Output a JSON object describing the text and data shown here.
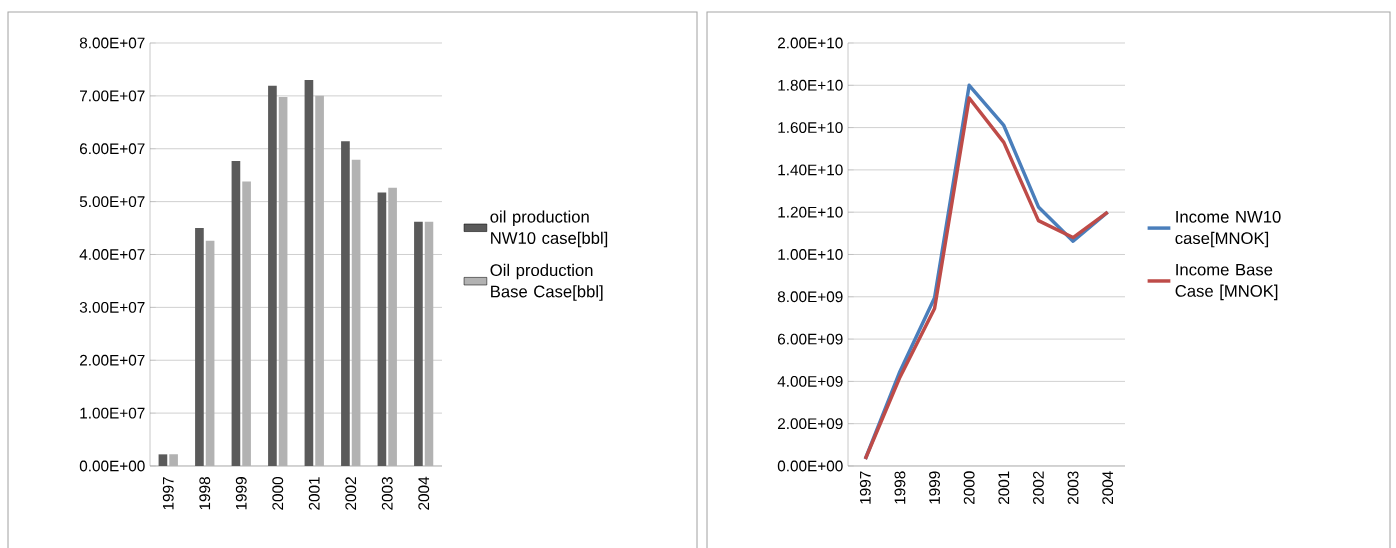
{
  "chart_data": [
    {
      "type": "bar",
      "categories": [
        "1997",
        "1998",
        "1999",
        "2000",
        "2001",
        "2002",
        "2003",
        "2004"
      ],
      "series": [
        {
          "name": "oil production NW10 case[bbl]",
          "color": "#5a5a5a",
          "values": [
            2200000,
            45000000,
            57700000,
            71900000,
            73000000,
            61400000,
            51700000,
            46200000
          ]
        },
        {
          "name": "Oil production Base Case[bbl]",
          "color": "#b2b2b2",
          "values": [
            2200000,
            42600000,
            53800000,
            69800000,
            70000000,
            57900000,
            52600000,
            46200000
          ]
        }
      ],
      "ylim": [
        0,
        80000000
      ],
      "yticks": [
        {
          "value": 0,
          "label": "0.00E+00"
        },
        {
          "value": 10000000,
          "label": "1.00E+07"
        },
        {
          "value": 20000000,
          "label": "2.00E+07"
        },
        {
          "value": 30000000,
          "label": "3.00E+07"
        },
        {
          "value": 40000000,
          "label": "4.00E+07"
        },
        {
          "value": 50000000,
          "label": "5.00E+07"
        },
        {
          "value": 60000000,
          "label": "6.00E+07"
        },
        {
          "value": 70000000,
          "label": "7.00E+07"
        },
        {
          "value": 80000000,
          "label": "8.00E+07"
        }
      ],
      "grid": "y",
      "legend": "right"
    },
    {
      "type": "line",
      "categories": [
        "1997",
        "1998",
        "1999",
        "2000",
        "2001",
        "2002",
        "2003",
        "2004"
      ],
      "series": [
        {
          "name": "Income NW10 case[MNOK]",
          "color": "#4a7ebb",
          "values": [
            330000000,
            4470000000,
            7950000000,
            18000000000,
            16100000000,
            12250000000,
            10630000000,
            12000000000
          ]
        },
        {
          "name": "Income Base Case [MNOK]",
          "color": "#be4b48",
          "values": [
            330000000,
            4200000000,
            7450000000,
            17400000000,
            15300000000,
            11600000000,
            10800000000,
            12000000000
          ]
        }
      ],
      "ylim": [
        0,
        20000000000
      ],
      "yticks": [
        {
          "value": 0,
          "label": "0.00E+00"
        },
        {
          "value": 2000000000,
          "label": "2.00E+09"
        },
        {
          "value": 4000000000,
          "label": "4.00E+09"
        },
        {
          "value": 6000000000,
          "label": "6.00E+09"
        },
        {
          "value": 8000000000,
          "label": "8.00E+09"
        },
        {
          "value": 10000000000,
          "label": "1.00E+10"
        },
        {
          "value": 12000000000,
          "label": "1.20E+10"
        },
        {
          "value": 14000000000,
          "label": "1.40E+10"
        },
        {
          "value": 16000000000,
          "label": "1.60E+10"
        },
        {
          "value": 18000000000,
          "label": "1.80E+10"
        },
        {
          "value": 20000000000,
          "label": "2.00E+10"
        }
      ],
      "grid": "y",
      "legend": "right"
    }
  ]
}
